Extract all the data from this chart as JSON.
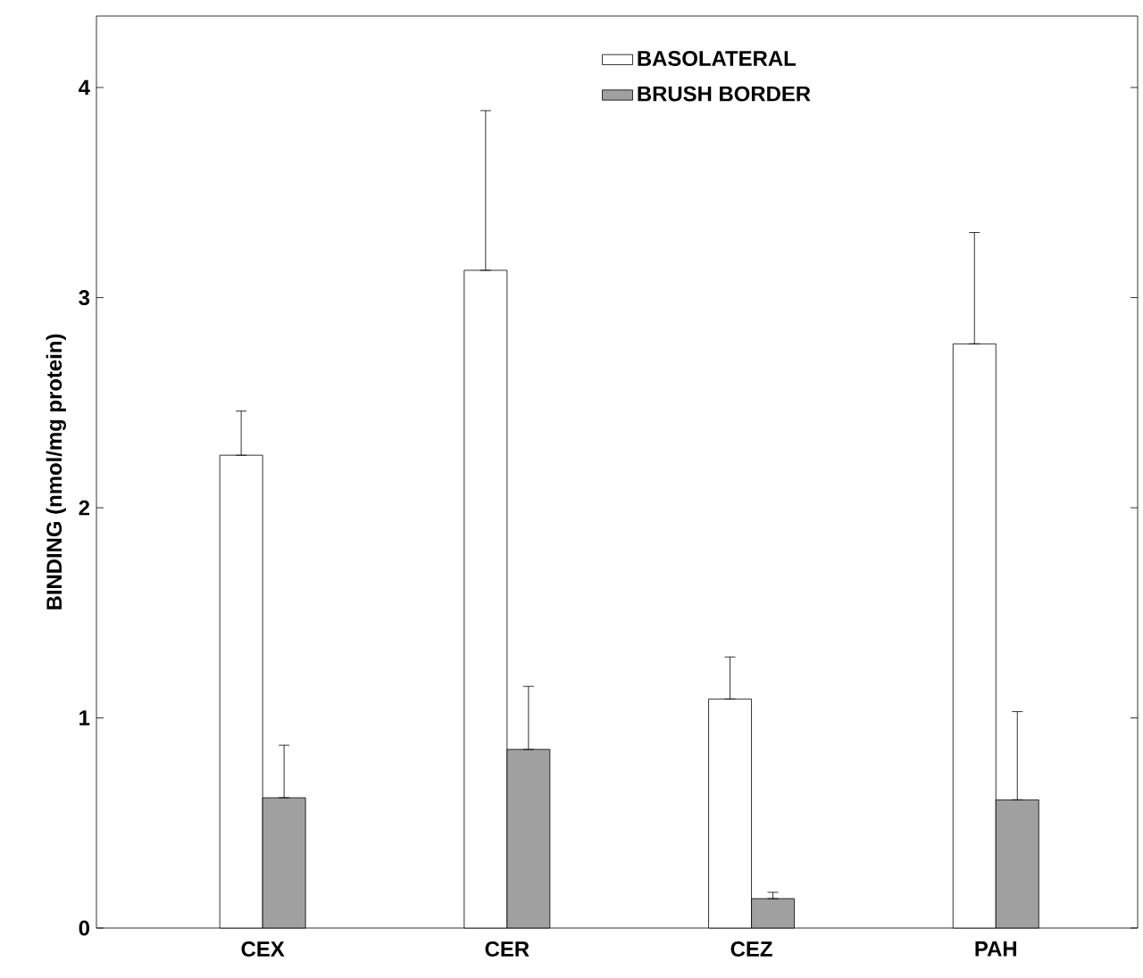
{
  "chart_data": {
    "type": "bar",
    "ylabel": "BINDING (nmol/mg protein)",
    "categories": [
      "CEX",
      "CER",
      "CEZ",
      "PAH"
    ],
    "series": [
      {
        "name": "BASOLATERAL",
        "color": "#ffffff",
        "values": [
          2.25,
          3.13,
          1.09,
          2.78
        ],
        "errors": [
          [
            2.25,
            2.46
          ],
          [
            3.13,
            3.89
          ],
          [
            1.09,
            1.29
          ],
          [
            2.78,
            3.31
          ]
        ]
      },
      {
        "name": "BRUSH BORDER",
        "color": "#a0a0a0",
        "values": [
          0.62,
          0.85,
          0.14,
          0.61
        ],
        "errors": [
          [
            0.62,
            0.87
          ],
          [
            0.85,
            1.15
          ],
          [
            0.14,
            0.17
          ],
          [
            0.61,
            1.03
          ]
        ]
      }
    ],
    "ylim": [
      0,
      4.34
    ],
    "yticks": [
      0,
      1,
      2,
      3,
      4
    ],
    "legend": "top",
    "grid": false
  }
}
